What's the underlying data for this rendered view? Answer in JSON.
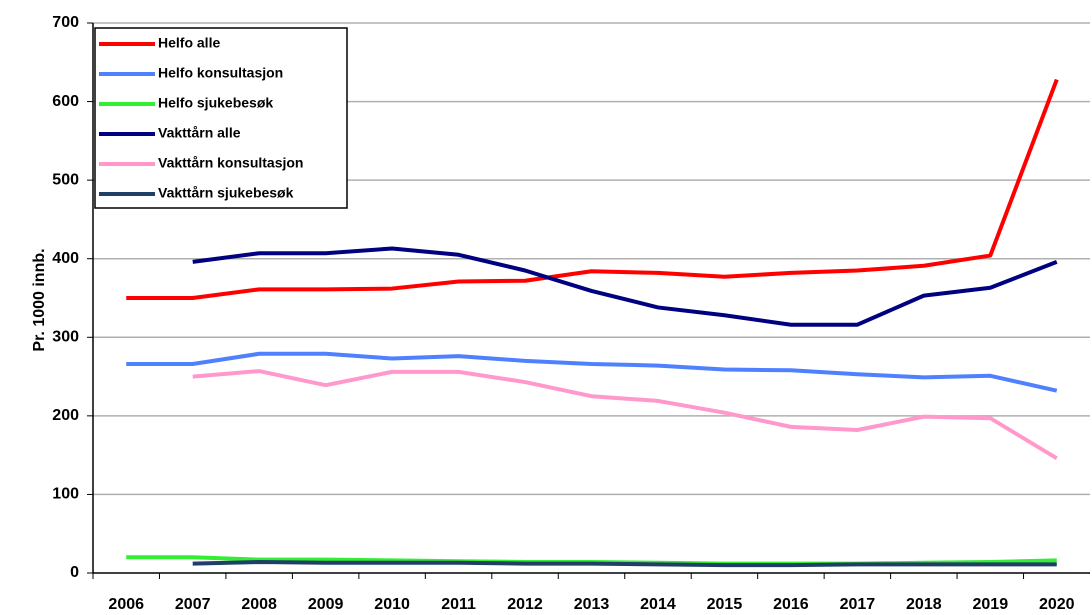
{
  "chart_data": {
    "type": "line",
    "y_label": "Pr. 1000 innb.",
    "categories": [
      "2006",
      "2007",
      "2008",
      "2009",
      "2010",
      "2011",
      "2012",
      "2013",
      "2014",
      "2015",
      "2016",
      "2017",
      "2018",
      "2019",
      "2020"
    ],
    "ylim": [
      0,
      700
    ],
    "yticks": [
      0,
      100,
      200,
      300,
      400,
      500,
      600,
      700
    ],
    "grid": true,
    "legend": "top-left",
    "series": [
      {
        "name": "Helfo alle",
        "color": "#ff0000",
        "values": [
          350,
          350,
          361,
          361,
          362,
          371,
          372,
          384,
          382,
          377,
          382,
          385,
          391,
          404,
          628
        ]
      },
      {
        "name": "Helfo konsultasjon",
        "color": "#4f81ff",
        "values": [
          266,
          266,
          279,
          279,
          273,
          276,
          270,
          266,
          264,
          259,
          258,
          253,
          249,
          251,
          232
        ]
      },
      {
        "name": "Helfo sjukebesøk",
        "color": "#33ee33",
        "values": [
          20,
          20,
          17,
          17,
          16,
          15,
          14,
          14,
          13,
          12,
          12,
          12,
          13,
          14,
          16
        ]
      },
      {
        "name": "Vakttårn alle",
        "color": "#000080",
        "values": [
          null,
          396,
          407,
          407,
          413,
          405,
          385,
          359,
          338,
          328,
          316,
          316,
          353,
          363,
          396
        ]
      },
      {
        "name": "Vakttårn konsultasjon",
        "color": "#ff99cc",
        "values": [
          null,
          250,
          257,
          239,
          256,
          256,
          243,
          225,
          219,
          204,
          186,
          182,
          199,
          197,
          146
        ]
      },
      {
        "name": "Vakttårn sjukebesøk",
        "color": "#1f3f66",
        "values": [
          null,
          12,
          14,
          13,
          13,
          13,
          12,
          12,
          11,
          10,
          10,
          11,
          11,
          11,
          11
        ]
      }
    ]
  }
}
